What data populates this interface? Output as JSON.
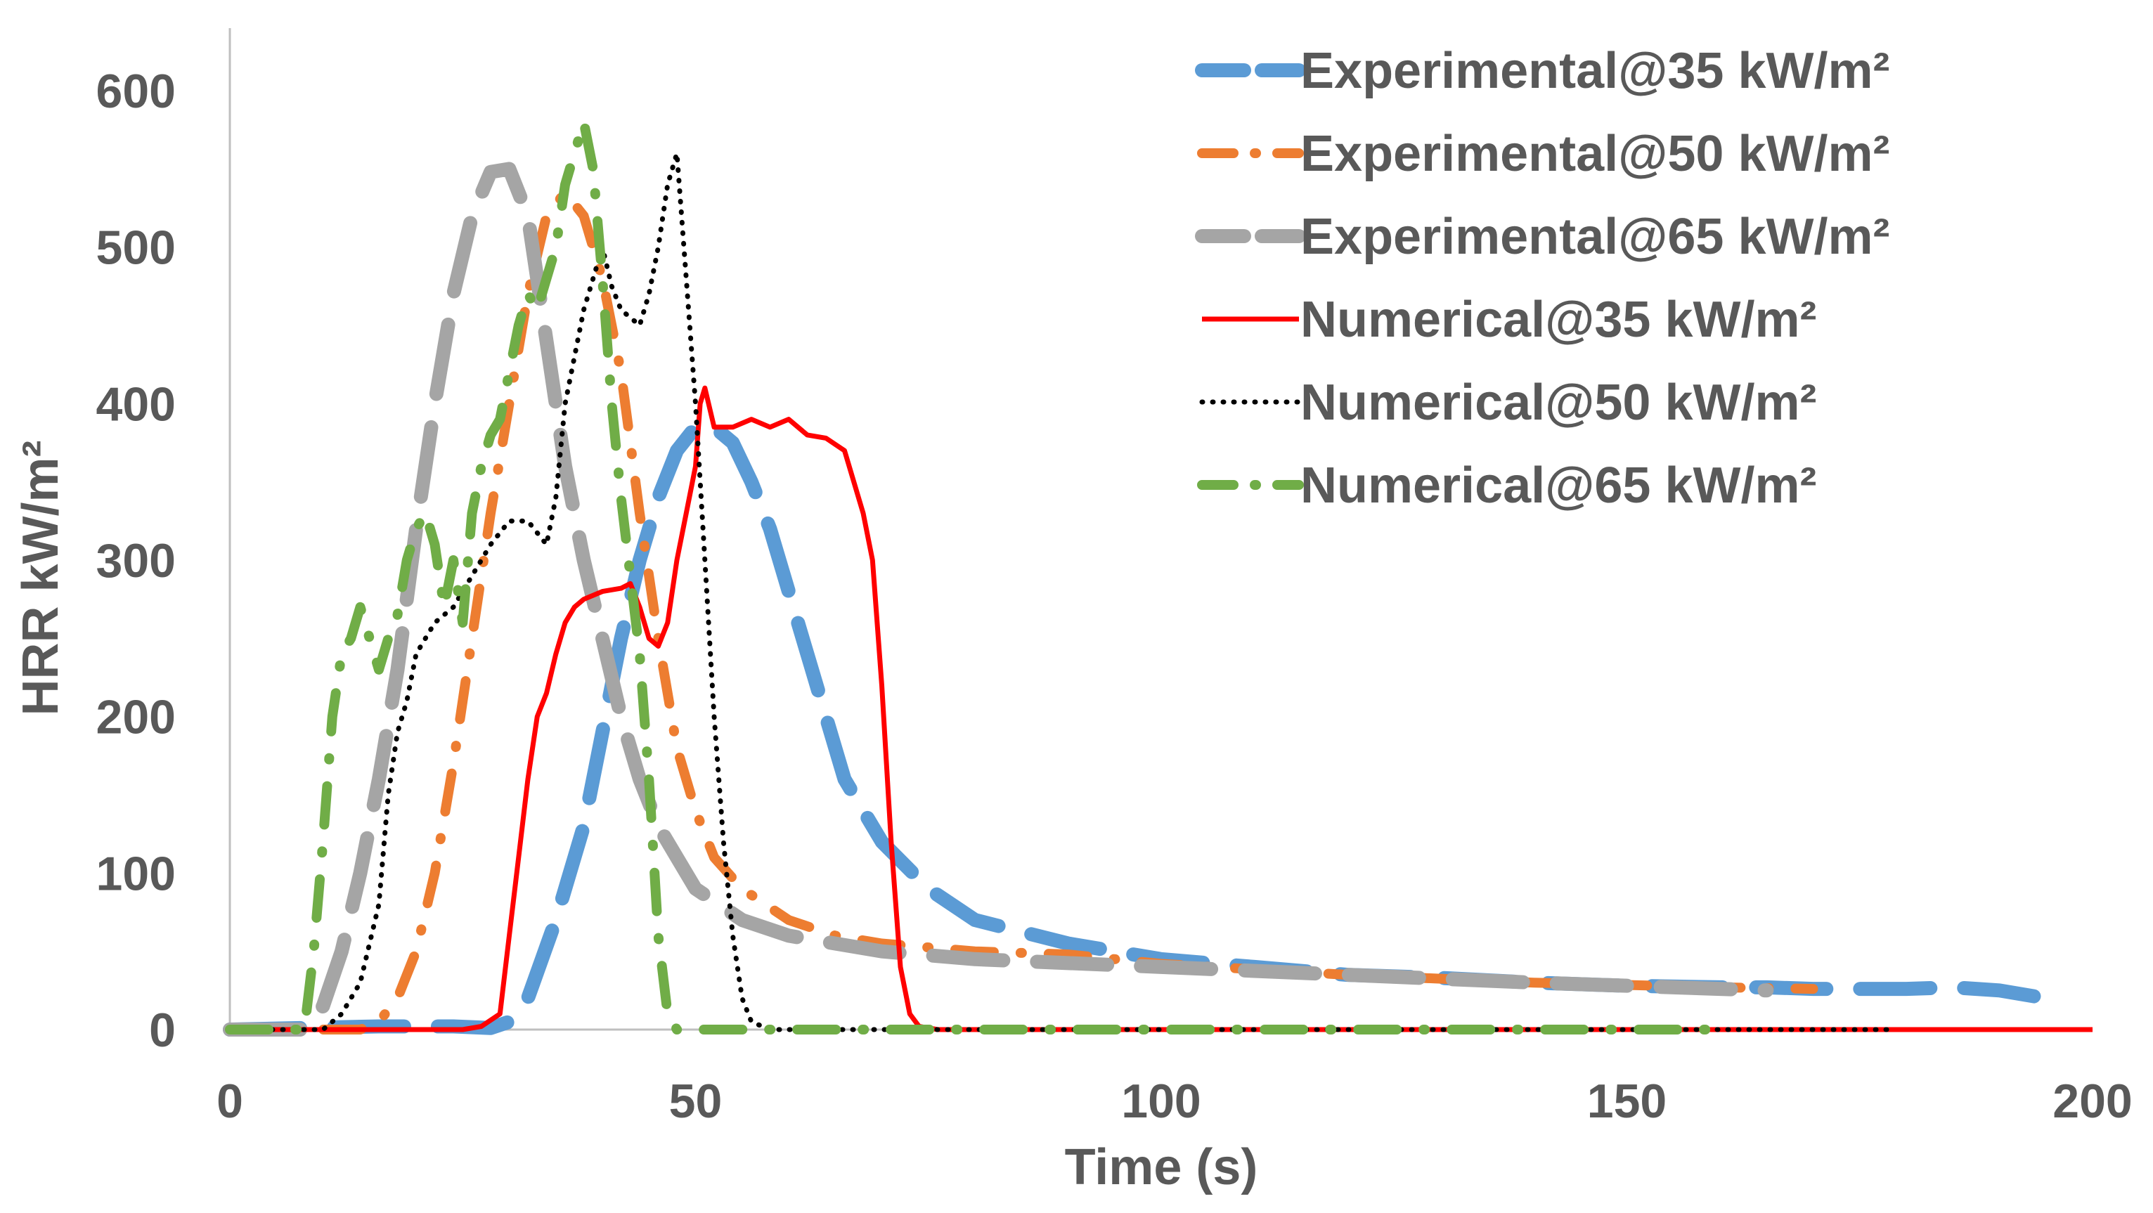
{
  "chart_data": {
    "type": "line",
    "title": "",
    "xlabel": "Time (s)",
    "ylabel": "HRR kW/m²",
    "xlim": [
      0,
      200
    ],
    "ylim": [
      0,
      640
    ],
    "xticks": [
      0,
      50,
      100,
      150,
      200
    ],
    "yticks": [
      0,
      100,
      200,
      300,
      400,
      500,
      600
    ],
    "grid": false,
    "legend_position": "top-right",
    "series": [
      {
        "name": "Experimental@35 kW/m²",
        "color": "#5B9BD5",
        "style": "longdash",
        "x": [
          0,
          16,
          24,
          28,
          30,
          32,
          35,
          38,
          40,
          42,
          44,
          46,
          48,
          50,
          52,
          54,
          56,
          58,
          60,
          62,
          64,
          66,
          68,
          70,
          75,
          80,
          90,
          100,
          110,
          120,
          130,
          140,
          150,
          160,
          165,
          170,
          180,
          185,
          190,
          195
        ],
        "y": [
          0,
          2,
          2,
          1,
          5,
          20,
          70,
          130,
          190,
          250,
          300,
          340,
          370,
          385,
          385,
          375,
          350,
          320,
          280,
          240,
          200,
          160,
          140,
          120,
          90,
          70,
          55,
          45,
          40,
          35,
          33,
          30,
          28,
          27,
          27,
          26,
          26,
          27,
          25,
          20
        ]
      },
      {
        "name": "Experimental@50 kW/m²",
        "color": "#ED7D31",
        "style": "dashdot",
        "x": [
          0,
          14,
          16,
          18,
          20,
          22,
          24,
          26,
          28,
          30,
          32,
          34,
          36,
          38,
          40,
          42,
          44,
          46,
          48,
          50,
          52,
          55,
          60,
          65,
          70,
          80,
          90,
          100,
          120,
          140,
          160,
          170
        ],
        "y": [
          0,
          0,
          5,
          20,
          50,
          100,
          170,
          250,
          330,
          400,
          470,
          520,
          535,
          520,
          480,
          420,
          330,
          250,
          180,
          140,
          110,
          90,
          70,
          60,
          55,
          50,
          48,
          42,
          35,
          30,
          27,
          26
        ]
      },
      {
        "name": "Experimental@65 kW/m²",
        "color": "#A5A5A5",
        "style": "longdash",
        "x": [
          0,
          8,
          10,
          12,
          14,
          16,
          18,
          20,
          22,
          24,
          26,
          28,
          30,
          32,
          34,
          36,
          38,
          40,
          42,
          44,
          46,
          48,
          50,
          55,
          60,
          70,
          80,
          100,
          120,
          140,
          160,
          165
        ],
        "y": [
          0,
          0,
          15,
          50,
          100,
          160,
          230,
          320,
          400,
          470,
          520,
          548,
          550,
          520,
          440,
          360,
          300,
          250,
          200,
          160,
          130,
          110,
          90,
          70,
          60,
          50,
          45,
          40,
          35,
          30,
          26,
          25
        ]
      },
      {
        "name": "Numerical@35 kW/m²",
        "color": "#FF0000",
        "style": "solid",
        "x": [
          0,
          25,
          27,
          29,
          30,
          31,
          32,
          33,
          34,
          35,
          36,
          37,
          38,
          40,
          42,
          43,
          44,
          45,
          46,
          47,
          48,
          49,
          50,
          50.5,
          51,
          52,
          54,
          56,
          58,
          60,
          62,
          64,
          66,
          68,
          69,
          70,
          71,
          72,
          73,
          74,
          76,
          80,
          100,
          150,
          200
        ],
        "y": [
          0,
          0,
          2,
          10,
          60,
          110,
          160,
          200,
          215,
          240,
          260,
          270,
          275,
          280,
          282,
          285,
          270,
          250,
          245,
          260,
          300,
          330,
          360,
          400,
          410,
          385,
          385,
          390,
          385,
          390,
          380,
          378,
          370,
          330,
          300,
          220,
          120,
          40,
          10,
          2,
          0,
          0,
          0,
          0,
          0
        ]
      },
      {
        "name": "Numerical@50 kW/m²",
        "color": "#000000",
        "style": "dotted",
        "x": [
          0,
          10,
          12,
          14,
          16,
          17,
          18,
          19,
          20,
          22,
          24,
          26,
          28,
          30,
          32,
          34,
          35,
          36,
          37,
          38,
          39,
          40,
          41,
          42,
          43,
          44,
          45,
          46,
          47,
          48,
          49,
          50,
          51,
          52,
          53,
          54,
          55,
          56,
          58,
          60,
          100,
          150,
          178
        ],
        "y": [
          0,
          0,
          10,
          30,
          80,
          150,
          190,
          210,
          240,
          260,
          270,
          290,
          310,
          325,
          325,
          310,
          340,
          400,
          430,
          460,
          480,
          500,
          475,
          460,
          455,
          450,
          470,
          500,
          540,
          560,
          480,
          400,
          300,
          200,
          120,
          60,
          20,
          5,
          0,
          0,
          0,
          0,
          0
        ]
      },
      {
        "name": "Numerical@65 kW/m²",
        "color": "#70AD47",
        "style": "dashdot",
        "x": [
          0,
          8,
          9,
          10,
          11,
          12,
          13,
          14,
          15,
          16,
          17,
          18,
          19,
          20,
          21,
          22,
          23,
          24,
          25,
          26,
          27,
          28,
          29,
          30,
          31,
          32,
          33,
          34,
          35,
          36,
          37,
          38,
          39,
          40,
          41,
          42,
          43,
          44,
          45,
          46,
          47,
          48,
          50,
          60,
          80,
          100,
          120,
          140,
          160
        ],
        "y": [
          0,
          0,
          50,
          120,
          200,
          240,
          250,
          270,
          250,
          230,
          250,
          265,
          300,
          320,
          330,
          310,
          270,
          300,
          260,
          330,
          360,
          380,
          390,
          420,
          450,
          470,
          460,
          480,
          500,
          540,
          560,
          580,
          550,
          480,
          400,
          340,
          290,
          240,
          160,
          60,
          10,
          0,
          0,
          0,
          0,
          0,
          0,
          0,
          0
        ]
      }
    ]
  }
}
